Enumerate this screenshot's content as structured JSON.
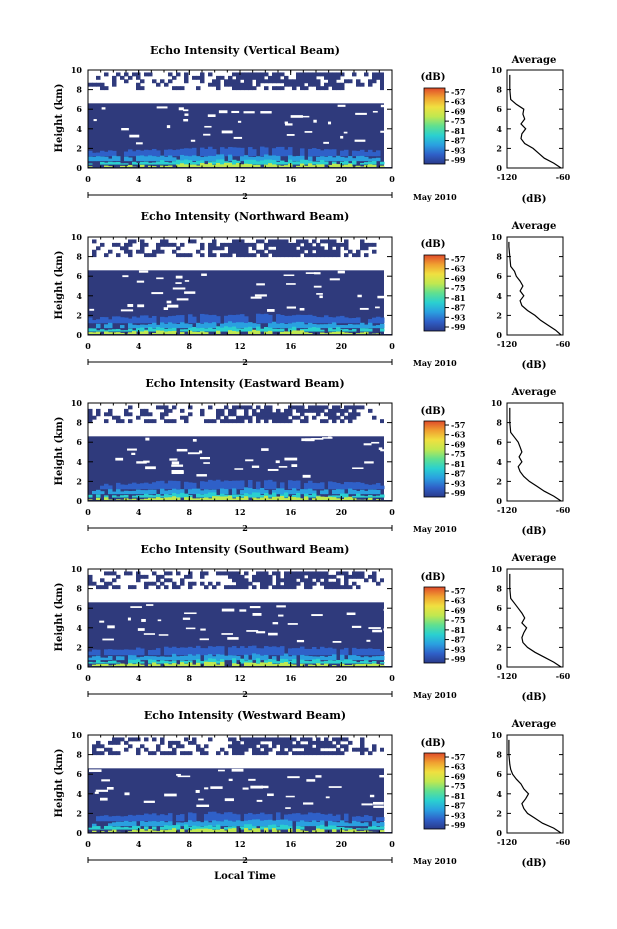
{
  "figure": {
    "xlabel": "Local Time",
    "date_label": "May 2010",
    "day_label": "2",
    "colorbar_unit": "(dB)",
    "avg_title": "Average",
    "avg_unit": "(dB)",
    "colors": {
      "background_echo": "#2f3a7c",
      "colormap": [
        "#2a3a8a",
        "#2f60c8",
        "#2aa0e0",
        "#2ad0d0",
        "#60e090",
        "#c0e850",
        "#f0e040",
        "#f0a030",
        "#e04a2a"
      ]
    }
  },
  "chart_data": [
    {
      "type": "heatmap",
      "title": "Echo Intensity (Vertical Beam)",
      "ylabel": "Height (km)",
      "xlabel": "",
      "x_ticks": [
        "0",
        "4",
        "8",
        "12",
        "16",
        "20",
        "0"
      ],
      "xlim": [
        0,
        24
      ],
      "y_ticks": [
        "0",
        "2",
        "4",
        "6",
        "8",
        "10"
      ],
      "ylim": [
        0,
        10
      ],
      "colorbar_ticks": [
        "-57",
        "-63",
        "-69",
        "-75",
        "-81",
        "-87",
        "-93",
        "-99"
      ],
      "average": {
        "xlim": [
          -120,
          -60
        ],
        "x_ticks": [
          "-120",
          "-60"
        ],
        "heights": [
          0,
          0.5,
          1,
          1.5,
          2,
          2.5,
          3,
          3.5,
          4,
          4.5,
          5,
          5.5,
          6,
          6.5,
          7,
          8,
          9,
          9.5
        ],
        "values": [
          -62,
          -70,
          -80,
          -86,
          -92,
          -101,
          -105,
          -104,
          -100,
          -105,
          -101,
          -103,
          -102,
          -110,
          -116,
          -117,
          -117,
          -117
        ]
      }
    },
    {
      "type": "heatmap",
      "title": "Echo Intensity (Northward Beam)",
      "ylabel": "Height (km)",
      "xlabel": "",
      "x_ticks": [
        "0",
        "4",
        "8",
        "12",
        "16",
        "20",
        "0"
      ],
      "xlim": [
        0,
        24
      ],
      "y_ticks": [
        "0",
        "2",
        "4",
        "6",
        "8",
        "10"
      ],
      "ylim": [
        0,
        10
      ],
      "colorbar_ticks": [
        "-57",
        "-63",
        "-69",
        "-75",
        "-81",
        "-87",
        "-93",
        "-99"
      ],
      "average": {
        "xlim": [
          -120,
          -60
        ],
        "x_ticks": [
          "-120",
          "-60"
        ],
        "heights": [
          0,
          0.5,
          1,
          1.5,
          2,
          2.5,
          3,
          3.5,
          4,
          4.5,
          5,
          5.5,
          6,
          6.5,
          7,
          8,
          9,
          9.5
        ],
        "values": [
          -62,
          -68,
          -76,
          -84,
          -90,
          -98,
          -104,
          -106,
          -102,
          -106,
          -103,
          -106,
          -110,
          -112,
          -116,
          -117,
          -118,
          -118
        ]
      }
    },
    {
      "type": "heatmap",
      "title": "Echo Intensity (Eastward Beam)",
      "ylabel": "Height (km)",
      "xlabel": "",
      "x_ticks": [
        "0",
        "4",
        "8",
        "12",
        "16",
        "20",
        "0"
      ],
      "xlim": [
        0,
        24
      ],
      "y_ticks": [
        "0",
        "2",
        "4",
        "6",
        "8",
        "10"
      ],
      "ylim": [
        0,
        10
      ],
      "colorbar_ticks": [
        "-57",
        "-63",
        "-69",
        "-75",
        "-81",
        "-87",
        "-93",
        "-99"
      ],
      "average": {
        "xlim": [
          -120,
          -60
        ],
        "x_ticks": [
          "-120",
          "-60"
        ],
        "heights": [
          0,
          0.5,
          1,
          1.5,
          2,
          2.5,
          3,
          3.5,
          4,
          4.5,
          5,
          5.5,
          6,
          6.5,
          7,
          8,
          9,
          9.5
        ],
        "values": [
          -62,
          -70,
          -80,
          -88,
          -96,
          -102,
          -106,
          -108,
          -104,
          -107,
          -104,
          -106,
          -108,
          -112,
          -116,
          -117,
          -117,
          -117
        ]
      }
    },
    {
      "type": "heatmap",
      "title": "Echo Intensity (Southward Beam)",
      "ylabel": "Height (km)",
      "xlabel": "",
      "x_ticks": [
        "0",
        "4",
        "8",
        "12",
        "16",
        "20",
        "0"
      ],
      "xlim": [
        0,
        24
      ],
      "y_ticks": [
        "0",
        "2",
        "4",
        "6",
        "8",
        "10"
      ],
      "ylim": [
        0,
        10
      ],
      "colorbar_ticks": [
        "-57",
        "-63",
        "-69",
        "-75",
        "-81",
        "-87",
        "-93",
        "-99"
      ],
      "average": {
        "xlim": [
          -120,
          -60
        ],
        "x_ticks": [
          "-120",
          "-60"
        ],
        "heights": [
          0,
          0.5,
          1,
          1.5,
          2,
          2.5,
          3,
          3.5,
          4,
          4.5,
          5,
          5.5,
          6,
          6.5,
          7,
          8,
          9,
          9.5
        ],
        "values": [
          -62,
          -70,
          -80,
          -90,
          -98,
          -103,
          -104,
          -102,
          -99,
          -104,
          -101,
          -104,
          -108,
          -112,
          -116,
          -117,
          -117,
          -117
        ]
      }
    },
    {
      "type": "heatmap",
      "title": "Echo Intensity (Westward Beam)",
      "ylabel": "Height (km)",
      "xlabel": "",
      "x_ticks": [
        "0",
        "4",
        "8",
        "12",
        "16",
        "20",
        "0"
      ],
      "xlim": [
        0,
        24
      ],
      "y_ticks": [
        "0",
        "2",
        "4",
        "6",
        "8",
        "10"
      ],
      "ylim": [
        0,
        10
      ],
      "colorbar_ticks": [
        "-57",
        "-63",
        "-69",
        "-75",
        "-81",
        "-87",
        "-93",
        "-99"
      ],
      "average": {
        "xlim": [
          -120,
          -60
        ],
        "x_ticks": [
          "-120",
          "-60"
        ],
        "heights": [
          0,
          0.5,
          1,
          1.5,
          2,
          2.5,
          3,
          3.5,
          4,
          4.5,
          5,
          5.5,
          6,
          6.5,
          7,
          8,
          9,
          9.5
        ],
        "values": [
          -62,
          -70,
          -82,
          -90,
          -98,
          -102,
          -104,
          -100,
          -97,
          -102,
          -105,
          -110,
          -114,
          -116,
          -117,
          -118,
          -118,
          -118
        ]
      }
    }
  ]
}
